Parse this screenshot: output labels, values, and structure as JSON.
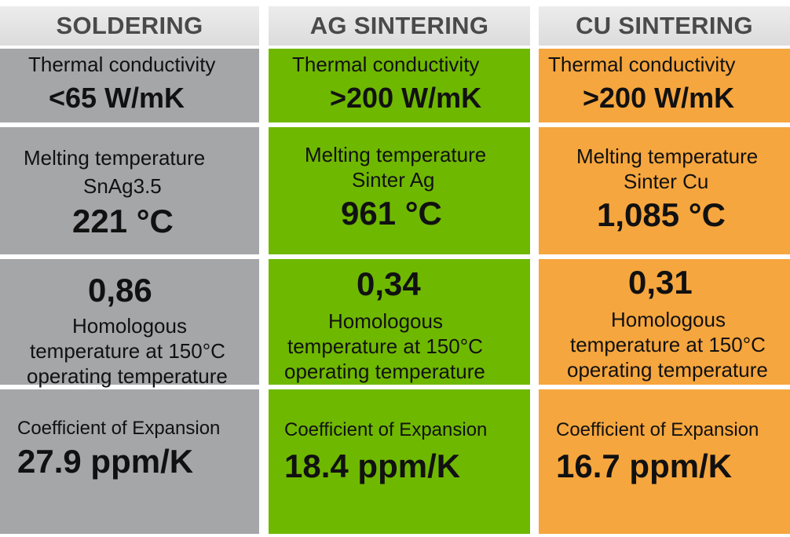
{
  "columns": [
    {
      "header": "SOLDERING",
      "thermal_label": "Thermal conductivity",
      "thermal_value": "<65 W/mK",
      "melting_label": "Melting temperature",
      "melting_material": "SnAg3.5",
      "melting_value": "221 °C",
      "homologous_value": "0,86",
      "homologous_line1": "Homologous",
      "homologous_line2": "temperature at 150°C",
      "homologous_line3": "operating temperature",
      "expansion_label": "Coefficient of Expansion",
      "expansion_value": "27.9 ppm/K",
      "color": "#a5a6a8"
    },
    {
      "header": "AG SINTERING",
      "thermal_label": "Thermal conductivity",
      "thermal_value": ">200 W/mK",
      "melting_label": "Melting temperature",
      "melting_material": "Sinter Ag",
      "melting_value": "961 °C",
      "homologous_value": "0,34",
      "homologous_line1": "Homologous",
      "homologous_line2": "temperature at 150°C",
      "homologous_line3": "operating temperature",
      "expansion_label": "Coefficient of Expansion",
      "expansion_value": "18.4 ppm/K",
      "color": "#6fb800"
    },
    {
      "header": "CU SINTERING",
      "thermal_label": "Thermal conductivity",
      "thermal_value": ">200 W/mK",
      "melting_label": "Melting temperature",
      "melting_material": "Sinter Cu",
      "melting_value": "1,085 °C",
      "homologous_value": "0,31",
      "homologous_line1": "Homologous",
      "homologous_line2": "temperature at 150°C",
      "homologous_line3": "operating temperature",
      "expansion_label": "Coefficient of Expansion",
      "expansion_value": "16.7 ppm/K",
      "color": "#f6a63e"
    }
  ]
}
